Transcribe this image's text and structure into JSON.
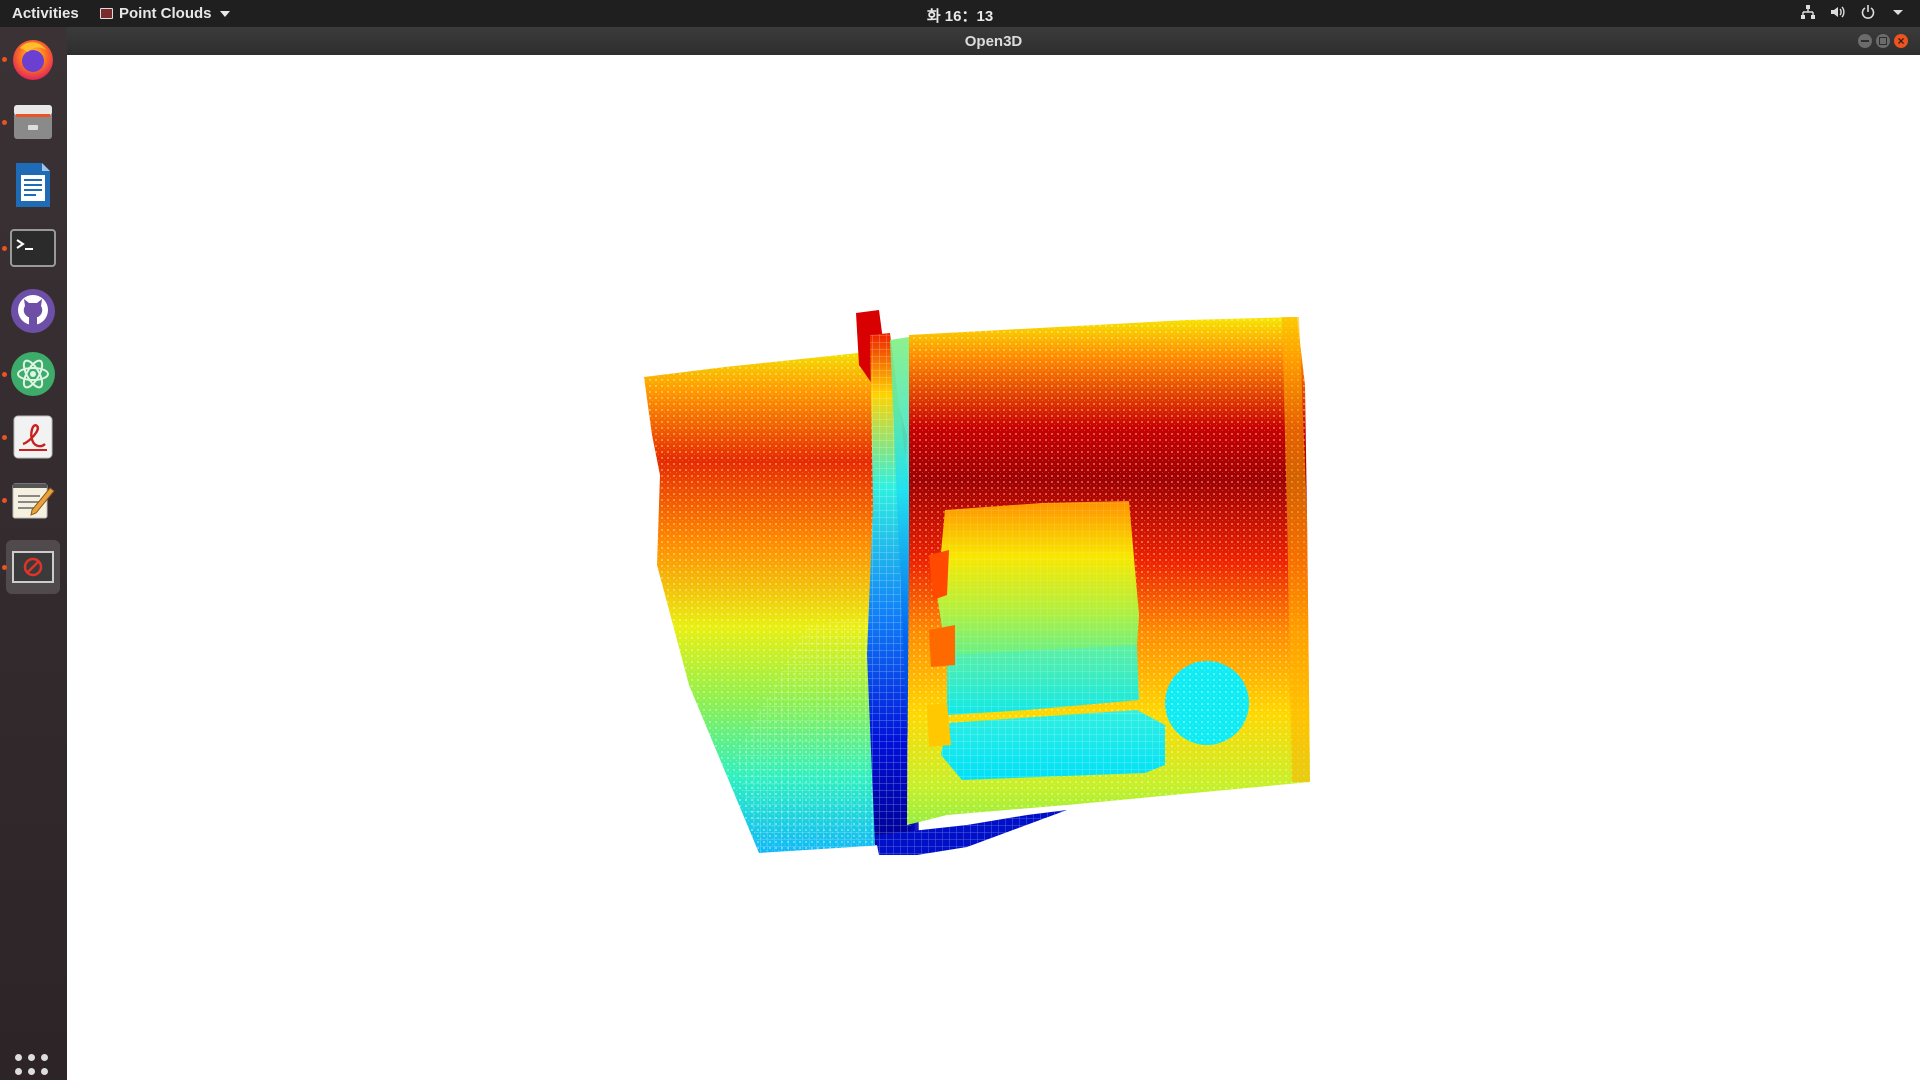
{
  "topbar": {
    "activities": "Activities",
    "app_menu": "Point Clouds",
    "clock": "화 16：13"
  },
  "window": {
    "title": "Open3D"
  },
  "dock": {
    "items": [
      "firefox",
      "files",
      "writer",
      "terminal",
      "github-desktop",
      "atom",
      "document-viewer",
      "text-editor",
      "open3d-window"
    ]
  },
  "colors": {
    "topbar": "#1f1f1f",
    "dock": "#322a2c",
    "accent": "#e95420"
  }
}
